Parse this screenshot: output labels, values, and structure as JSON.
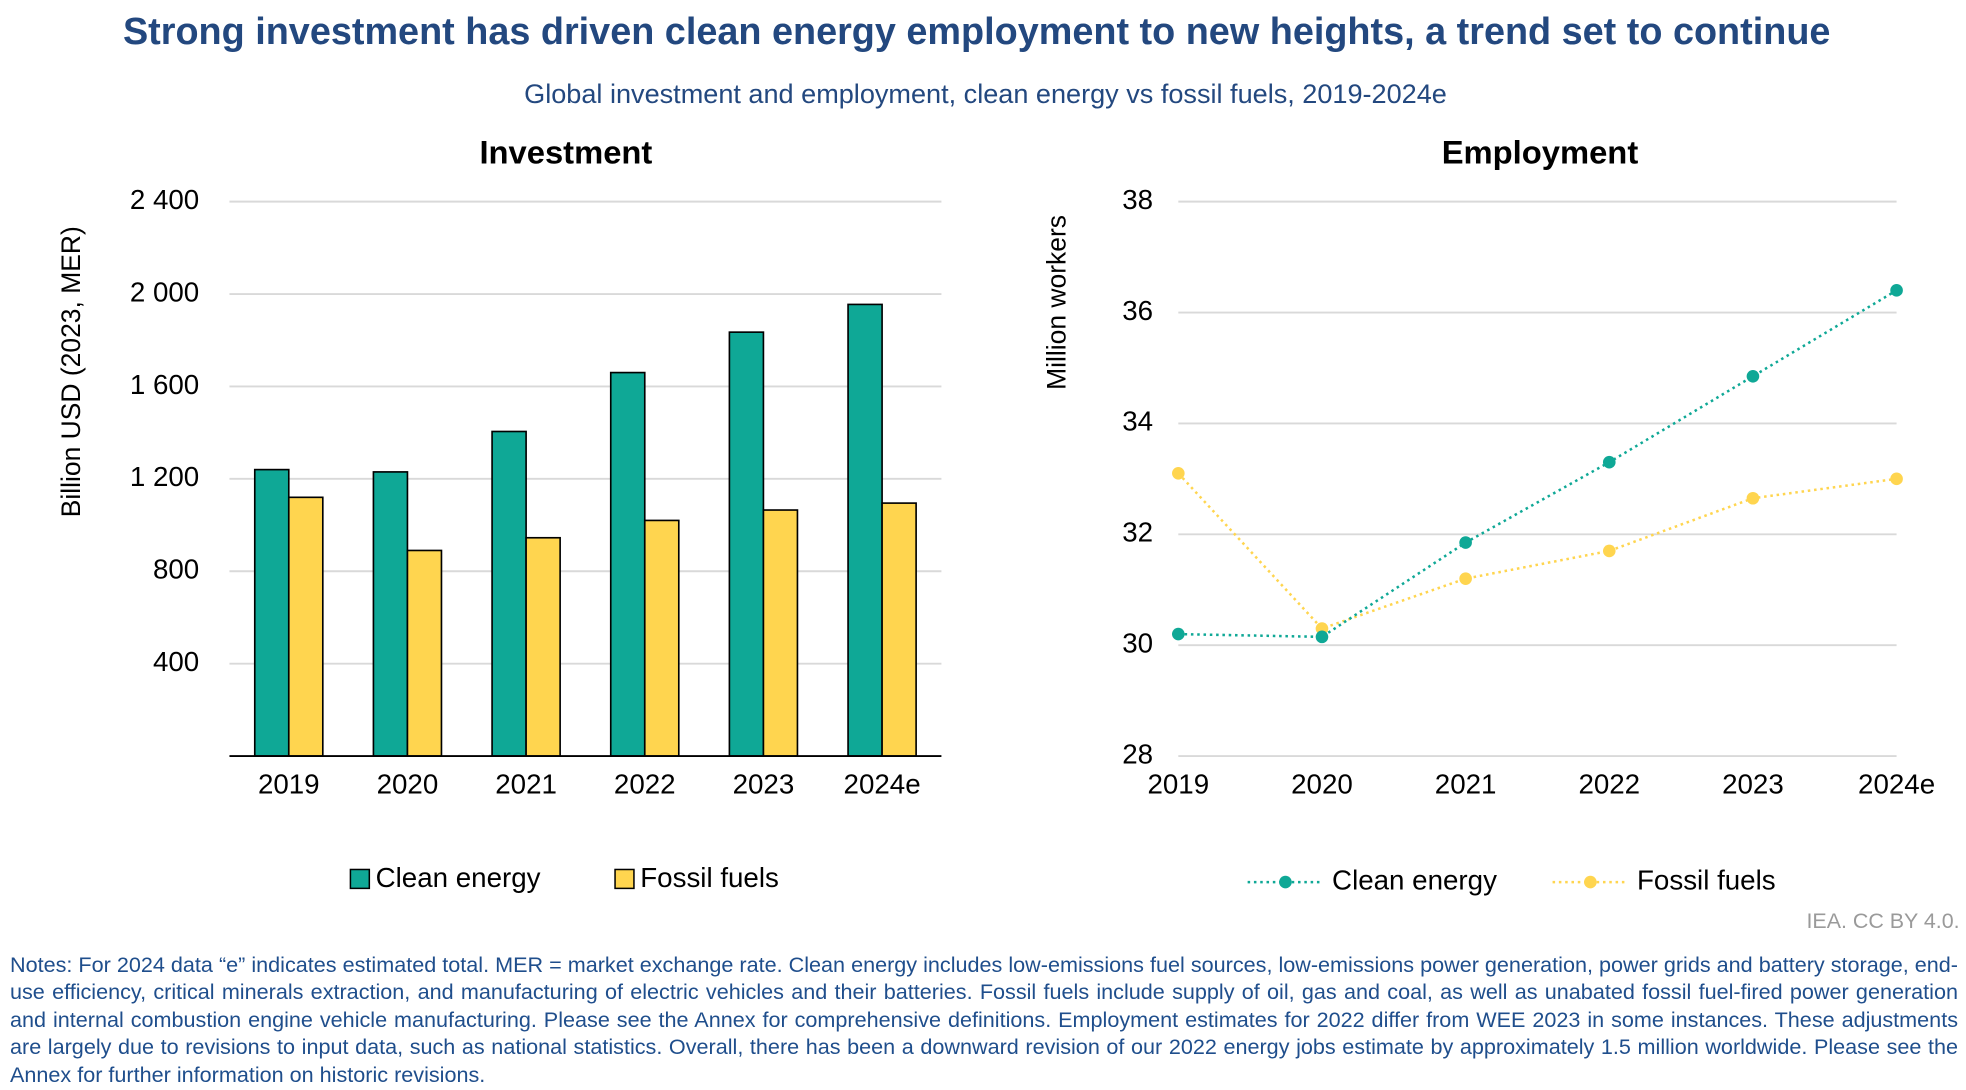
{
  "header": {
    "title": "Strong investment has driven clean energy employment to new heights, a trend set to continue",
    "subtitle": "Global investment and employment, clean energy vs fossil fuels, 2019-2024e"
  },
  "chart_data": [
    {
      "type": "bar",
      "title": "Investment",
      "y_label": "Billion USD (2023, MER)",
      "categories": [
        "2019",
        "2020",
        "2021",
        "2022",
        "2023",
        "2024e"
      ],
      "series": [
        {
          "name": "Clean energy",
          "color": "#0fa896",
          "values": [
            1240,
            1230,
            1405,
            1660,
            1835,
            1955
          ]
        },
        {
          "name": "Fossil fuels",
          "color": "#ffd54f",
          "values": [
            1120,
            890,
            945,
            1020,
            1065,
            1095
          ]
        }
      ],
      "ylim": [
        0,
        2400
      ],
      "yticks": [
        400,
        800,
        {
          "value": 1200,
          "label": "1 200"
        },
        {
          "value": 1600,
          "label": "1 600"
        },
        {
          "value": 2000,
          "label": "2 000"
        },
        {
          "value": 2400,
          "label": "2 400"
        }
      ],
      "grid": true
    },
    {
      "type": "line",
      "title": "Employment",
      "y_label": "Million workers",
      "categories": [
        "2019",
        "2020",
        "2021",
        "2022",
        "2023",
        "2024e"
      ],
      "series": [
        {
          "name": "Clean energy",
          "color": "#0fa896",
          "values": [
            30.2,
            30.15,
            31.85,
            33.3,
            34.85,
            36.4
          ]
        },
        {
          "name": "Fossil fuels",
          "color": "#ffd54f",
          "values": [
            33.1,
            30.3,
            31.2,
            31.7,
            32.65,
            33.0
          ]
        }
      ],
      "ylim": [
        28,
        38
      ],
      "yticks": [
        28,
        30,
        32,
        34,
        36,
        38
      ],
      "grid": true
    }
  ],
  "source": "IEA. CC BY 4.0.",
  "notes": "Notes: For 2024 data “e” indicates estimated total. MER = market exchange rate. Clean energy includes low-emissions fuel sources, low-emissions power generation, power grids and battery storage, end-use efficiency, critical minerals extraction, and manufacturing of electric vehicles and their batteries. Fossil fuels include supply of oil, gas and coal, as well as unabated fossil fuel-fired power generation and internal combustion engine vehicle manufacturing. Please see the Annex for comprehensive definitions. Employment estimates for 2022 differ from WEE 2023 in some instances. These adjustments are largely due to revisions to input data, such as national statistics. Overall, there has been a downward revision of our 2022 energy jobs estimate by approximately 1.5 million worldwide. Please see the Annex for further information on historic revisions."
}
